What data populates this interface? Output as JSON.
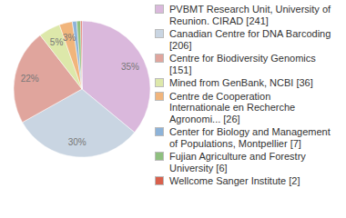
{
  "chart_data": {
    "type": "pie",
    "categories": [
      "PVBMT Research Unit, University of Reunion. CIRAD [241]",
      "Canadian Centre for DNA Barcoding [206]",
      "Centre for Biodiversity Genomics [151]",
      "Mined from GenBank, NCBI [36]",
      "Centre de Cooperation Internationale en Recherche Agronomi... [26]",
      "Center for Biology and Management of Populations, Montpellier [7]",
      "Fujian Agriculture and Forestry University [6]",
      "Wellcome Sanger Institute [2]"
    ],
    "values": [
      35,
      30,
      22,
      5,
      3,
      1,
      0.9,
      0.3
    ],
    "value_labels": [
      "35%",
      "30%",
      "22%",
      "5%",
      "3%",
      null,
      null,
      null
    ],
    "colors": [
      "#dab8dc",
      "#c9d5e2",
      "#e0a59d",
      "#dde8aa",
      "#f1b57c",
      "#8db3d9",
      "#8fc07f",
      "#d9604c"
    ],
    "data_labels": true,
    "legend": "right"
  }
}
